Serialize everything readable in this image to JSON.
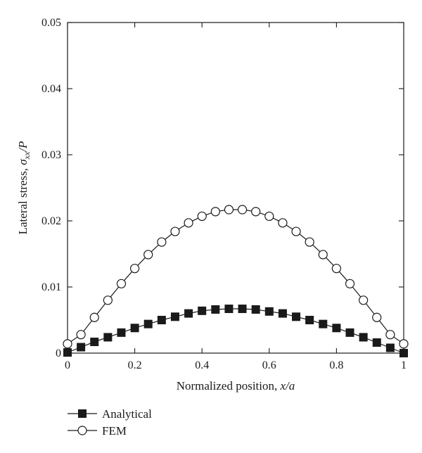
{
  "chart_data": {
    "type": "line",
    "xlim": [
      0,
      1
    ],
    "ylim": [
      0,
      0.05
    ],
    "xticks": [
      0,
      0.2,
      0.4,
      0.6,
      0.8,
      1
    ],
    "xtick_labels": [
      "0",
      "0.2",
      "0.4",
      "0.6",
      "0.8",
      "1"
    ],
    "yticks": [
      0,
      0.01,
      0.02,
      0.03,
      0.04,
      0.05
    ],
    "ytick_labels": [
      "0",
      "0.01",
      "0.02",
      "0.03",
      "0.04",
      "0.05"
    ],
    "xlabel_prefix": "Normalized position, ",
    "xlabel_math": "x/a",
    "ylabel_prefix": "Lateral stress, ",
    "ylabel_sigma": "σ",
    "ylabel_sub": "xx",
    "ylabel_suffix": "/P",
    "grid": false,
    "legend_position": "bottom-left",
    "series": [
      {
        "name": "Analytical",
        "marker": "filled-square",
        "x": [
          0,
          0.04,
          0.08,
          0.12,
          0.16,
          0.2,
          0.24,
          0.28,
          0.32,
          0.36,
          0.4,
          0.44,
          0.48,
          0.52,
          0.56,
          0.6,
          0.64,
          0.68,
          0.72,
          0.76,
          0.8,
          0.84,
          0.88,
          0.92,
          0.96,
          1
        ],
        "y": [
          0.0001,
          0.0009,
          0.0017,
          0.0024,
          0.0031,
          0.0038,
          0.0044,
          0.005,
          0.0055,
          0.006,
          0.0064,
          0.0066,
          0.0067,
          0.0067,
          0.0066,
          0.0063,
          0.006,
          0.0055,
          0.005,
          0.0044,
          0.0038,
          0.0031,
          0.0024,
          0.0016,
          0.0008,
          0.0
        ]
      },
      {
        "name": "FEM",
        "marker": "open-circle",
        "x": [
          0,
          0.04,
          0.08,
          0.12,
          0.16,
          0.2,
          0.24,
          0.28,
          0.32,
          0.36,
          0.4,
          0.44,
          0.48,
          0.52,
          0.56,
          0.6,
          0.64,
          0.68,
          0.72,
          0.76,
          0.8,
          0.84,
          0.88,
          0.92,
          0.96,
          1
        ],
        "y": [
          0.0014,
          0.0028,
          0.0054,
          0.008,
          0.0105,
          0.0128,
          0.0149,
          0.0168,
          0.0184,
          0.0197,
          0.0207,
          0.0214,
          0.0217,
          0.0217,
          0.0214,
          0.0207,
          0.0197,
          0.0184,
          0.0168,
          0.0149,
          0.0128,
          0.0105,
          0.008,
          0.0054,
          0.0028,
          0.0014
        ]
      }
    ]
  }
}
